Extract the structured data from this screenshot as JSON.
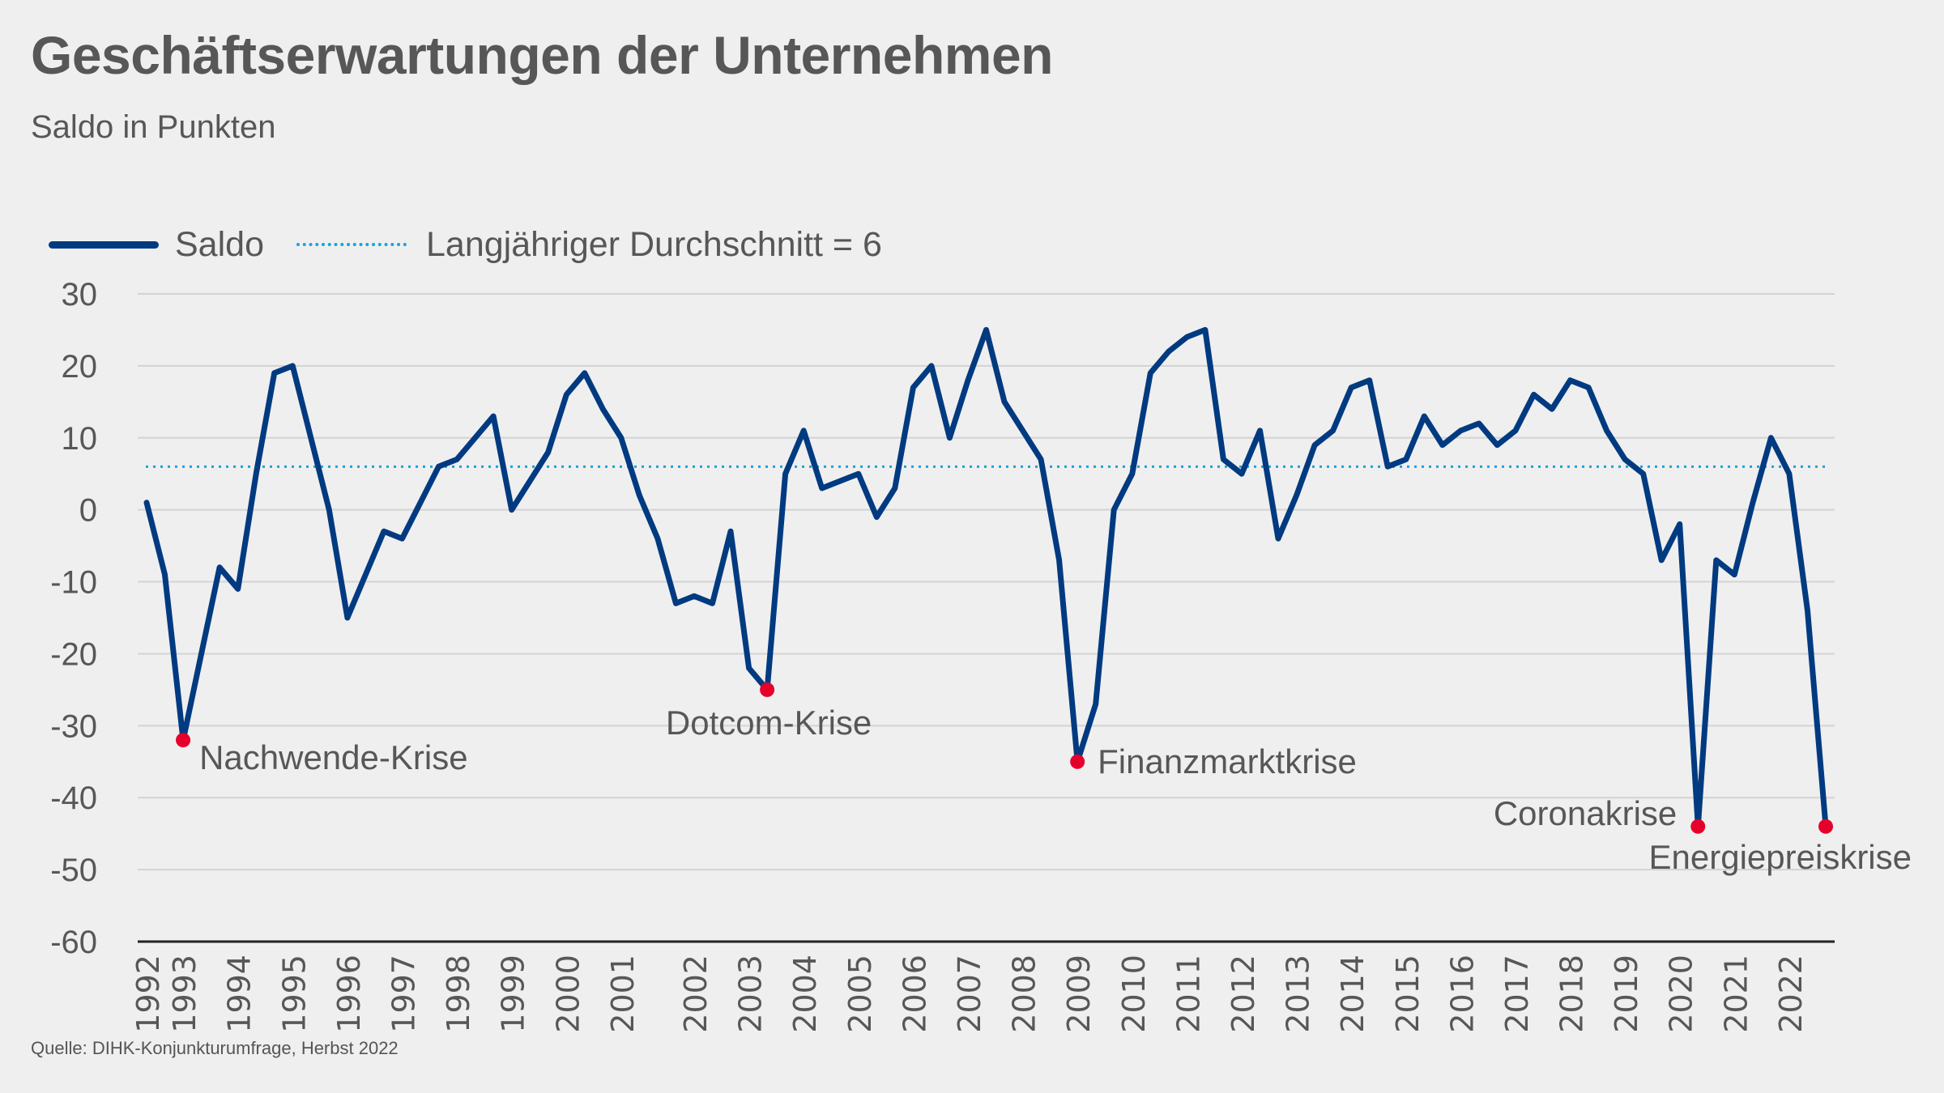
{
  "header": {
    "title": "Geschäftserwartungen der Unternehmen",
    "subtitle": "Saldo in Punkten"
  },
  "legend": {
    "items": [
      {
        "label": "Saldo",
        "style": "solid",
        "color": "#003a80"
      },
      {
        "label": "Langjähriger Durchschnitt = 6",
        "style": "dotted",
        "color": "#1aa3d9"
      }
    ]
  },
  "footer": {
    "source": "Quelle: DIHK-Konjunkturumfrage, Herbst 2022"
  },
  "colors": {
    "line": "#003a80",
    "average": "#1aa3d9",
    "marker": "#e4002b",
    "grid": "#d3d3d3",
    "axis": "#222222",
    "background": "#efefef"
  },
  "chart_data": {
    "type": "line",
    "title": "Geschäftserwartungen der Unternehmen",
    "subtitle": "Saldo in Punkten",
    "xlabel": "",
    "ylabel": "Saldo in Punkten",
    "ylim": [
      -60,
      30
    ],
    "yticks": [
      30,
      20,
      10,
      0,
      -10,
      -20,
      -30,
      -40,
      -50,
      -60
    ],
    "grid": true,
    "legend_position": "top-left",
    "series": [
      {
        "name": "Saldo",
        "values": [
          1,
          -9,
          -32,
          -20,
          -8,
          -11,
          5,
          19,
          20,
          10,
          0,
          -15,
          -9,
          -3,
          -4,
          1,
          6,
          7,
          10,
          13,
          0,
          4,
          8,
          16,
          19,
          14,
          10,
          2,
          -4,
          -13,
          -12,
          -13,
          -3,
          -22,
          -25,
          5,
          11,
          3,
          4,
          5,
          -1,
          3,
          17,
          20,
          10,
          18,
          25,
          15,
          11,
          7,
          -7,
          -35,
          -27,
          0,
          5,
          19,
          22,
          24,
          25,
          7,
          5,
          11,
          -4,
          2,
          9,
          11,
          17,
          18,
          6,
          7,
          13,
          9,
          11,
          12,
          9,
          11,
          16,
          14,
          18,
          17,
          11,
          7,
          5,
          -7,
          -2,
          -44,
          -7,
          -9,
          1,
          10,
          5,
          -14,
          -44
        ]
      },
      {
        "name": "Langjähriger Durchschnitt",
        "constant": 6
      }
    ],
    "x_ticks": [
      {
        "label": "1992",
        "index": 0
      },
      {
        "label": "1993",
        "index": 2
      },
      {
        "label": "1994",
        "index": 5
      },
      {
        "label": "1995",
        "index": 8
      },
      {
        "label": "1996",
        "index": 11
      },
      {
        "label": "1997",
        "index": 14
      },
      {
        "label": "1998",
        "index": 17
      },
      {
        "label": "1999",
        "index": 20
      },
      {
        "label": "2000",
        "index": 23
      },
      {
        "label": "2001",
        "index": 26
      },
      {
        "label": "2002",
        "index": 30
      },
      {
        "label": "2003",
        "index": 33
      },
      {
        "label": "2004",
        "index": 36
      },
      {
        "label": "2005",
        "index": 39
      },
      {
        "label": "2006",
        "index": 42
      },
      {
        "label": "2007",
        "index": 45
      },
      {
        "label": "2008",
        "index": 48
      },
      {
        "label": "2009",
        "index": 51
      },
      {
        "label": "2010",
        "index": 54
      },
      {
        "label": "2011",
        "index": 57
      },
      {
        "label": "2012",
        "index": 60
      },
      {
        "label": "2013",
        "index": 63
      },
      {
        "label": "2014",
        "index": 66
      },
      {
        "label": "2015",
        "index": 69
      },
      {
        "label": "2016",
        "index": 72
      },
      {
        "label": "2017",
        "index": 75
      },
      {
        "label": "2018",
        "index": 78
      },
      {
        "label": "2019",
        "index": 81
      },
      {
        "label": "2020",
        "index": 84
      },
      {
        "label": "2021",
        "index": 87
      },
      {
        "label": "2022",
        "index": 90
      }
    ],
    "annotations": [
      {
        "label": "Nachwende-Krise",
        "index": 2,
        "value": -32,
        "anchor": "right-below"
      },
      {
        "label": "Dotcom-Krise",
        "index": 34,
        "value": -25,
        "anchor": "below"
      },
      {
        "label": "Finanzmarktkrise",
        "index": 51,
        "value": -35,
        "anchor": "right"
      },
      {
        "label": "Coronakrise",
        "index": 85,
        "value": -44,
        "anchor": "left"
      },
      {
        "label": "Energiepreiskrise",
        "index": 92,
        "value": -44,
        "anchor": "below-left"
      }
    ]
  }
}
